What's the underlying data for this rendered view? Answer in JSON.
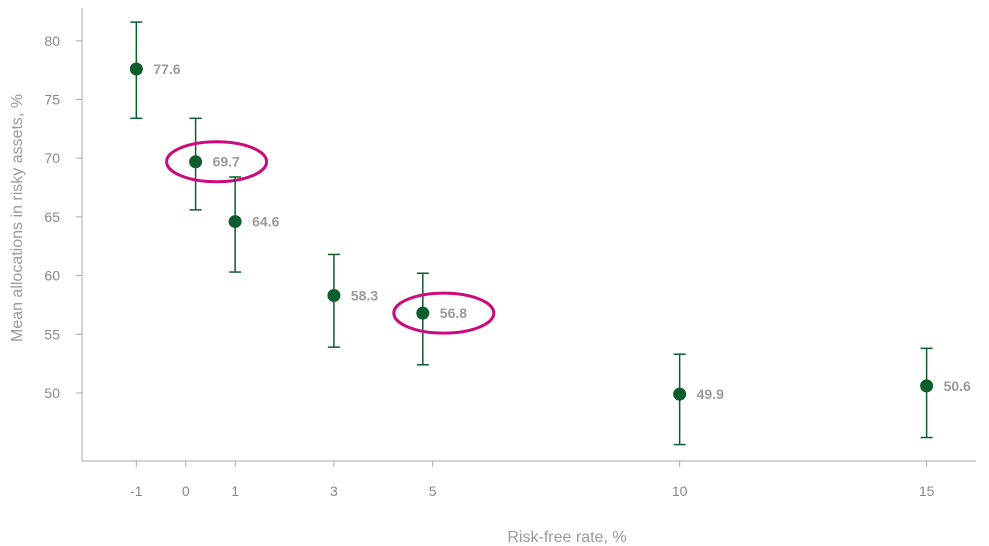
{
  "chart_data": {
    "type": "scatter",
    "title": "",
    "xlabel": "Risk-free rate, %",
    "ylabel": "Mean allocations in risky assets, %",
    "x_ticks": [
      -1,
      0,
      1,
      3,
      5,
      10,
      15
    ],
    "y_ticks": [
      50,
      55,
      60,
      65,
      70,
      75,
      80
    ],
    "xlim": [
      -2.1,
      16
    ],
    "ylim": [
      44.2,
      82.8
    ],
    "grid": false,
    "legend": "none",
    "colors": {
      "marker": "#0b5e2b",
      "highlight": "#cc0a7d",
      "text": "#9a9a9a",
      "axis": "#aaaaaa"
    },
    "points": [
      {
        "x": -1,
        "y": 77.6,
        "label": "77.6",
        "err_low": 73.4,
        "err_high": 81.6,
        "highlight": false
      },
      {
        "x": 0.2,
        "y": 69.7,
        "label": "69.7",
        "err_low": 65.6,
        "err_high": 73.4,
        "highlight": true
      },
      {
        "x": 1.0,
        "y": 64.6,
        "label": "64.6",
        "err_low": 60.3,
        "err_high": 68.4,
        "highlight": false
      },
      {
        "x": 3.0,
        "y": 58.3,
        "label": "58.3",
        "err_low": 53.9,
        "err_high": 61.8,
        "highlight": false
      },
      {
        "x": 4.8,
        "y": 56.8,
        "label": "56.8",
        "err_low": 52.4,
        "err_high": 60.2,
        "highlight": true
      },
      {
        "x": 10.0,
        "y": 49.9,
        "label": "49.9",
        "err_low": 45.6,
        "err_high": 53.3,
        "highlight": false
      },
      {
        "x": 15.0,
        "y": 50.6,
        "label": "50.6",
        "err_low": 46.2,
        "err_high": 53.8,
        "highlight": false
      }
    ]
  }
}
